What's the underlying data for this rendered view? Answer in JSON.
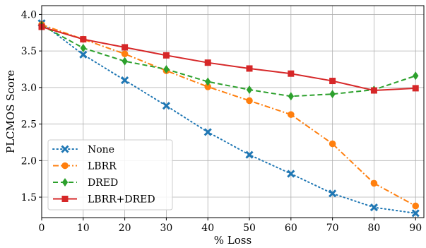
{
  "chart_data": {
    "type": "line",
    "title": "",
    "xlabel": "% Loss",
    "ylabel": "PLCMOS Score",
    "x": [
      0,
      10,
      20,
      30,
      40,
      50,
      60,
      70,
      80,
      90
    ],
    "xticks": [
      "0",
      "10",
      "20",
      "30",
      "40",
      "50",
      "60",
      "70",
      "80",
      "90"
    ],
    "yticks": [
      "1.5",
      "2.0",
      "2.5",
      "3.0",
      "3.5",
      "4.0"
    ],
    "ytick_values": [
      1.5,
      2.0,
      2.5,
      3.0,
      3.5,
      4.0
    ],
    "xlim": [
      0,
      92
    ],
    "ylim": [
      1.22,
      4.12
    ],
    "grid": true,
    "legend_position": "lower-left",
    "series": [
      {
        "name": "None",
        "values": [
          3.88,
          3.45,
          3.1,
          2.75,
          2.39,
          2.08,
          1.82,
          1.55,
          1.36,
          1.28
        ],
        "color": "#1f77b4",
        "dash": "dotted",
        "marker": "x"
      },
      {
        "name": "LBRR",
        "values": [
          3.86,
          3.66,
          3.46,
          3.23,
          3.01,
          2.82,
          2.63,
          2.23,
          1.69,
          1.38
        ],
        "color": "#ff7f0e",
        "dash": "dashdot",
        "marker": "circle"
      },
      {
        "name": "DRED",
        "values": [
          3.85,
          3.54,
          3.36,
          3.25,
          3.08,
          2.97,
          2.88,
          2.91,
          2.97,
          3.16
        ],
        "color": "#2ca02c",
        "dash": "dashed",
        "marker": "diamond"
      },
      {
        "name": "LBRR+DRED",
        "values": [
          3.83,
          3.66,
          3.55,
          3.44,
          3.34,
          3.26,
          3.19,
          3.09,
          2.96,
          2.99
        ],
        "color": "#d62728",
        "dash": "solid",
        "marker": "square"
      }
    ]
  }
}
